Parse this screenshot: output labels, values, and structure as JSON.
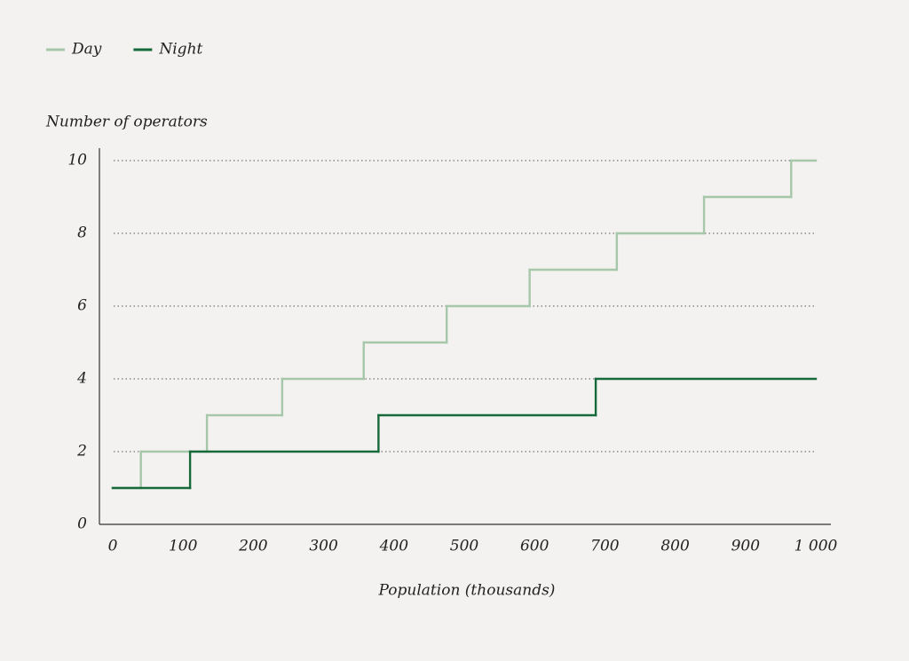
{
  "chart_data": {
    "type": "step",
    "xlabel": "Population (thousands)",
    "ylabel": "Number of operators",
    "xlim": [
      0,
      1000
    ],
    "ylim": [
      0,
      10
    ],
    "xticks": [
      0,
      100,
      200,
      300,
      400,
      500,
      600,
      700,
      800,
      900,
      {
        "value": 1000,
        "label": "1 000"
      }
    ],
    "yticks": [
      0,
      2,
      4,
      6,
      8,
      10
    ],
    "grid": true,
    "legend": "top-left",
    "series": [
      {
        "name": "Day",
        "color": "#a6c7aa",
        "x": [
          0,
          40,
          134,
          241,
          357,
          475,
          593,
          717,
          841,
          965
        ],
        "values": [
          1,
          2,
          3,
          4,
          5,
          6,
          7,
          8,
          9,
          10
        ]
      },
      {
        "name": "Night",
        "color": "#16693b",
        "x": [
          0,
          110,
          378,
          687
        ],
        "values": [
          1,
          2,
          3,
          4
        ]
      }
    ]
  }
}
